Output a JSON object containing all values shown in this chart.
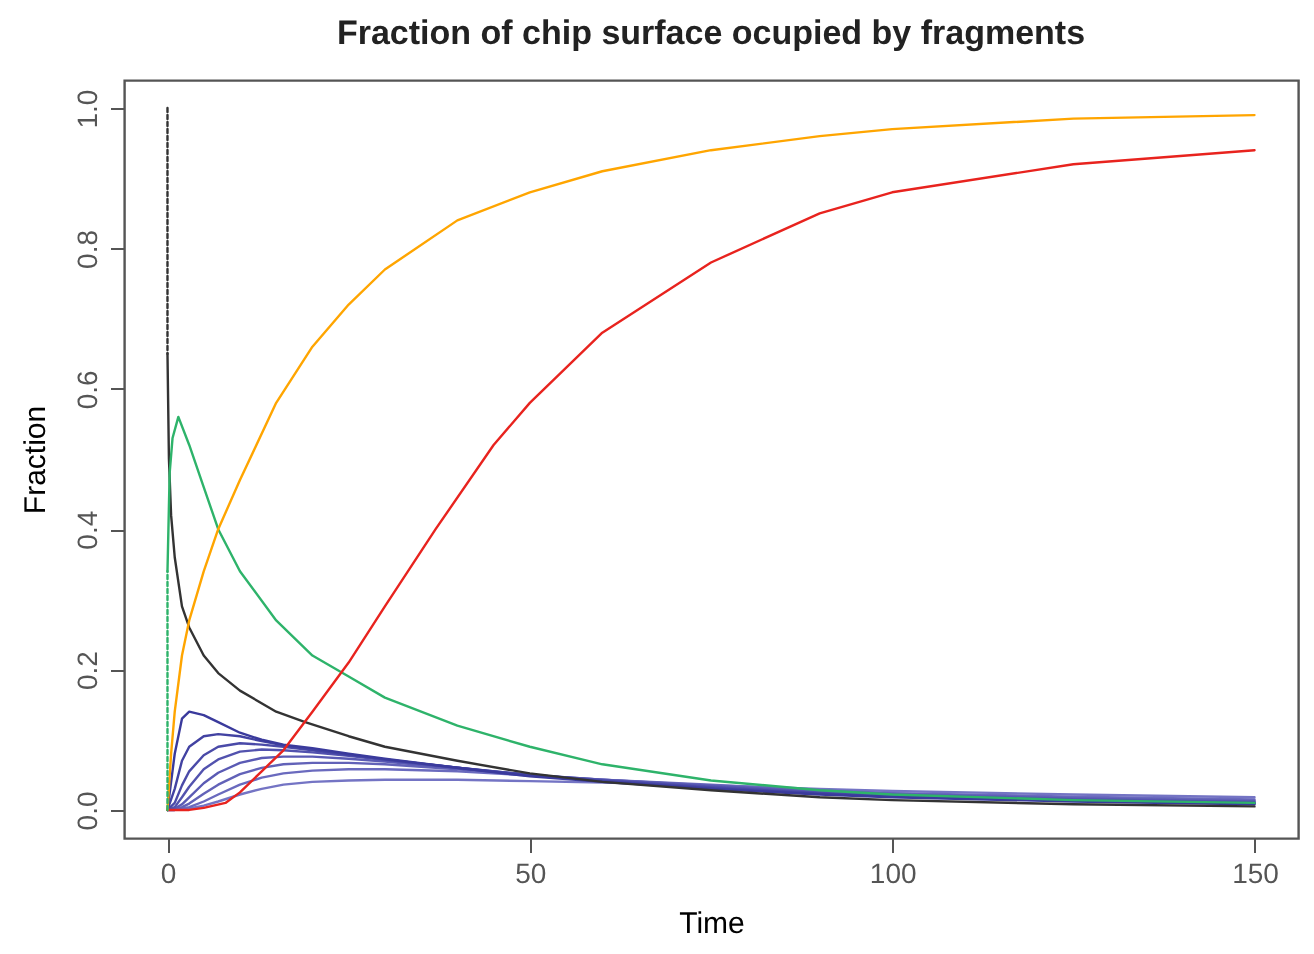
{
  "chart_data": {
    "type": "line",
    "title": "Fraction of chip surface ocupied by  fragments",
    "xlabel": "Time",
    "ylabel": "Fraction",
    "xlim": [
      -6,
      156
    ],
    "ylim": [
      -0.04,
      1.04
    ],
    "xticks": [
      0,
      50,
      100,
      150
    ],
    "yticks": [
      {
        "value": 0,
        "label": "0.0"
      },
      {
        "value": 0.2,
        "label": "0.2"
      },
      {
        "value": 0.4,
        "label": "0.4"
      },
      {
        "value": 0.6,
        "label": "0.6"
      },
      {
        "value": 0.8,
        "label": "0.8"
      },
      {
        "value": 1,
        "label": "1.0"
      }
    ],
    "grid": false,
    "marker": "none",
    "series": [
      {
        "color": "#ffa500",
        "x": [
          0,
          0.5,
          1,
          2,
          3,
          5,
          7,
          10,
          15,
          20,
          25,
          30,
          40,
          50,
          60,
          75,
          90,
          100,
          125,
          150
        ],
        "values": [
          0,
          0.08,
          0.14,
          0.22,
          0.27,
          0.34,
          0.4,
          0.47,
          0.58,
          0.66,
          0.72,
          0.77,
          0.84,
          0.88,
          0.91,
          0.94,
          0.96,
          0.97,
          0.985,
          0.99
        ]
      },
      {
        "color": "#e8231e",
        "x": [
          0,
          3,
          5,
          8,
          10,
          13,
          16,
          20,
          25,
          30,
          37,
          45,
          50,
          60,
          75,
          90,
          100,
          125,
          150
        ],
        "values": [
          0,
          0,
          0.003,
          0.01,
          0.025,
          0.055,
          0.085,
          0.14,
          0.21,
          0.29,
          0.4,
          0.52,
          0.58,
          0.68,
          0.78,
          0.85,
          0.88,
          0.92,
          0.94
        ]
      },
      {
        "color": "#2eb36a",
        "line_style": "dotted",
        "x": [
          0,
          0
        ],
        "values": [
          0,
          0.34
        ]
      },
      {
        "color": "#2eb36a",
        "x": [
          0,
          0.3,
          0.7,
          1.5,
          3,
          5,
          7,
          10,
          15,
          20,
          25,
          30,
          40,
          50,
          60,
          75,
          90,
          100,
          125,
          150
        ],
        "values": [
          0.34,
          0.48,
          0.53,
          0.56,
          0.52,
          0.46,
          0.4,
          0.34,
          0.27,
          0.22,
          0.19,
          0.16,
          0.12,
          0.09,
          0.065,
          0.042,
          0.028,
          0.022,
          0.014,
          0.01
        ]
      },
      {
        "color": "#333333",
        "line_style": "dotted",
        "x": [
          0,
          0
        ],
        "values": [
          1,
          0.65
        ]
      },
      {
        "color": "#333333",
        "x": [
          0,
          0.2,
          0.5,
          1,
          2,
          3,
          5,
          7,
          10,
          15,
          19,
          25,
          30,
          40,
          50,
          60,
          75,
          90,
          100,
          125,
          150
        ],
        "values": [
          0.65,
          0.5,
          0.42,
          0.36,
          0.29,
          0.26,
          0.22,
          0.195,
          0.17,
          0.14,
          0.125,
          0.105,
          0.09,
          0.07,
          0.052,
          0.04,
          0.028,
          0.018,
          0.014,
          0.008,
          0.005
        ]
      },
      {
        "color": "#3a3a9c",
        "x": [
          0,
          1,
          2,
          3,
          5,
          7,
          10,
          13,
          16,
          20,
          25,
          30,
          40,
          50,
          60,
          75,
          90,
          100,
          125,
          150
        ],
        "values": [
          0,
          0.08,
          0.13,
          0.14,
          0.135,
          0.125,
          0.11,
          0.1,
          0.093,
          0.088,
          0.08,
          0.073,
          0.06,
          0.048,
          0.04,
          0.03,
          0.022,
          0.018,
          0.012,
          0.008
        ]
      },
      {
        "color": "#4242a2",
        "x": [
          0,
          1,
          2,
          3,
          5,
          7,
          10,
          13,
          16,
          20,
          25,
          30,
          40,
          50,
          60,
          75,
          90,
          100,
          125,
          150
        ],
        "values": [
          0,
          0.03,
          0.07,
          0.09,
          0.105,
          0.108,
          0.105,
          0.098,
          0.092,
          0.086,
          0.079,
          0.072,
          0.06,
          0.049,
          0.041,
          0.031,
          0.023,
          0.019,
          0.013,
          0.009
        ]
      },
      {
        "color": "#4a4aa8",
        "x": [
          0,
          1,
          2,
          3,
          5,
          7,
          10,
          13,
          16,
          20,
          25,
          30,
          40,
          50,
          60,
          75,
          90,
          100,
          125,
          150
        ],
        "values": [
          0,
          0.01,
          0.035,
          0.055,
          0.078,
          0.09,
          0.095,
          0.093,
          0.09,
          0.085,
          0.078,
          0.072,
          0.06,
          0.05,
          0.042,
          0.032,
          0.024,
          0.02,
          0.014,
          0.01
        ]
      },
      {
        "color": "#5252ae",
        "x": [
          0,
          1,
          2,
          3,
          5,
          7,
          10,
          13,
          16,
          20,
          25,
          30,
          40,
          50,
          60,
          75,
          90,
          100,
          125,
          150
        ],
        "values": [
          0,
          0.004,
          0.018,
          0.033,
          0.058,
          0.072,
          0.083,
          0.086,
          0.085,
          0.082,
          0.077,
          0.071,
          0.06,
          0.05,
          0.042,
          0.033,
          0.025,
          0.021,
          0.015,
          0.011
        ]
      },
      {
        "color": "#5a5ab4",
        "x": [
          0,
          1,
          2,
          3,
          5,
          7,
          10,
          13,
          16,
          20,
          25,
          30,
          40,
          50,
          60,
          75,
          90,
          100,
          125,
          150
        ],
        "values": [
          0,
          0.002,
          0.008,
          0.018,
          0.038,
          0.053,
          0.067,
          0.074,
          0.076,
          0.076,
          0.073,
          0.069,
          0.059,
          0.05,
          0.043,
          0.034,
          0.026,
          0.022,
          0.016,
          0.012
        ]
      },
      {
        "color": "#6262b8",
        "x": [
          0,
          1,
          2,
          3,
          5,
          7,
          10,
          13,
          16,
          20,
          25,
          30,
          40,
          50,
          60,
          75,
          90,
          100,
          125,
          150
        ],
        "values": [
          0,
          0.001,
          0.004,
          0.009,
          0.023,
          0.036,
          0.051,
          0.06,
          0.065,
          0.067,
          0.067,
          0.065,
          0.058,
          0.05,
          0.043,
          0.035,
          0.027,
          0.023,
          0.017,
          0.013
        ]
      },
      {
        "color": "#6a6abe",
        "x": [
          0,
          1,
          2,
          3,
          5,
          7,
          10,
          13,
          16,
          20,
          25,
          30,
          40,
          50,
          60,
          75,
          90,
          100,
          125,
          150
        ],
        "values": [
          0,
          0,
          0.002,
          0.004,
          0.012,
          0.022,
          0.036,
          0.046,
          0.052,
          0.056,
          0.058,
          0.058,
          0.055,
          0.049,
          0.043,
          0.036,
          0.028,
          0.024,
          0.019,
          0.015
        ]
      },
      {
        "color": "#7474c4",
        "x": [
          0,
          1,
          2,
          3,
          5,
          7,
          10,
          13,
          16,
          20,
          25,
          30,
          40,
          50,
          60,
          75,
          90,
          100,
          125,
          150
        ],
        "values": [
          0,
          0,
          0.001,
          0.002,
          0.006,
          0.012,
          0.022,
          0.03,
          0.036,
          0.04,
          0.042,
          0.043,
          0.043,
          0.041,
          0.039,
          0.035,
          0.03,
          0.027,
          0.022,
          0.018
        ]
      }
    ]
  }
}
